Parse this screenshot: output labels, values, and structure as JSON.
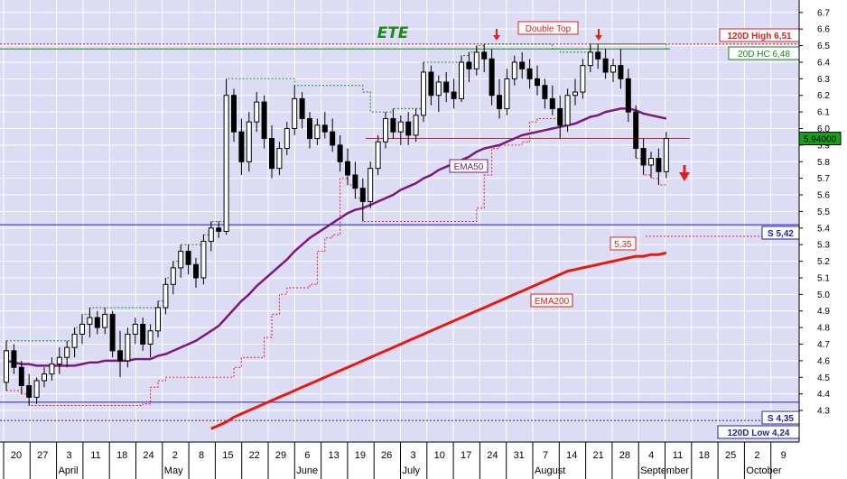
{
  "chart_data": {
    "type": "candlestick",
    "title": "ETE",
    "ylim": [
      4.2,
      6.75
    ],
    "y_ticks": [
      4.3,
      4.4,
      4.5,
      4.6,
      4.7,
      4.8,
      4.9,
      5.0,
      5.1,
      5.2,
      5.3,
      5.4,
      5.5,
      5.6,
      5.7,
      5.8,
      5.9,
      6.0,
      6.1,
      6.2,
      6.3,
      6.4,
      6.5,
      6.6,
      6.7
    ],
    "y_tick_labels": [
      "4.3",
      "4.4",
      "4.5",
      "4.6",
      "4.7",
      "4.8",
      "4.9",
      "5.0",
      "5.1",
      "5.2",
      "5.3",
      "5.4",
      "5.5",
      "5.6",
      "5.7",
      "5.8",
      "5.9",
      "6.0",
      "6.1",
      "6.2",
      "6.3",
      "6.4",
      "6.5",
      "6.6",
      "6.7"
    ],
    "x_tick_labels": [
      "20",
      "27",
      "3",
      "11",
      "18",
      "24",
      "2",
      "8",
      "15",
      "22",
      "29",
      "6",
      "13",
      "19",
      "26",
      "3",
      "10",
      "17",
      "24",
      "31",
      "7",
      "14",
      "21",
      "28",
      "4",
      "11",
      "18",
      "25",
      "2",
      "9"
    ],
    "months": [
      {
        "label": "April",
        "tick": 2
      },
      {
        "label": "May",
        "tick": 6
      },
      {
        "label": "June",
        "tick": 11
      },
      {
        "label": "July",
        "tick": 15
      },
      {
        "label": "August",
        "tick": 20
      },
      {
        "label": "September",
        "tick": 24
      },
      {
        "label": "October",
        "tick": 28
      }
    ],
    "candles": [
      [
        4.47,
        4.72,
        4.42,
        4.66
      ],
      [
        4.66,
        4.7,
        4.52,
        4.56
      ],
      [
        4.56,
        4.6,
        4.4,
        4.45
      ],
      [
        4.45,
        4.52,
        4.33,
        4.38
      ],
      [
        4.38,
        4.5,
        4.34,
        4.48
      ],
      [
        4.48,
        4.56,
        4.44,
        4.52
      ],
      [
        4.52,
        4.62,
        4.48,
        4.58
      ],
      [
        4.58,
        4.68,
        4.52,
        4.62
      ],
      [
        4.62,
        4.72,
        4.56,
        4.68
      ],
      [
        4.68,
        4.8,
        4.62,
        4.76
      ],
      [
        4.76,
        4.88,
        4.7,
        4.82
      ],
      [
        4.82,
        4.92,
        4.74,
        4.86
      ],
      [
        4.86,
        4.9,
        4.76,
        4.8
      ],
      [
        4.8,
        4.92,
        4.76,
        4.88
      ],
      [
        4.88,
        4.9,
        4.62,
        4.66
      ],
      [
        4.66,
        4.78,
        4.5,
        4.6
      ],
      [
        4.6,
        4.8,
        4.56,
        4.76
      ],
      [
        4.76,
        4.86,
        4.7,
        4.82
      ],
      [
        4.82,
        4.86,
        4.66,
        4.7
      ],
      [
        4.7,
        4.82,
        4.62,
        4.78
      ],
      [
        4.78,
        4.96,
        4.74,
        4.92
      ],
      [
        4.92,
        5.1,
        4.88,
        5.06
      ],
      [
        5.06,
        5.2,
        5.0,
        5.16
      ],
      [
        5.16,
        5.3,
        5.1,
        5.26
      ],
      [
        5.26,
        5.3,
        5.12,
        5.18
      ],
      [
        5.18,
        5.22,
        5.04,
        5.1
      ],
      [
        5.1,
        5.36,
        5.06,
        5.32
      ],
      [
        5.32,
        5.44,
        5.26,
        5.4
      ],
      [
        5.4,
        5.44,
        5.34,
        5.38
      ],
      [
        5.38,
        6.3,
        5.36,
        6.2
      ],
      [
        6.2,
        6.24,
        5.92,
        5.98
      ],
      [
        5.98,
        6.06,
        5.72,
        5.8
      ],
      [
        5.8,
        6.1,
        5.74,
        6.04
      ],
      [
        6.04,
        6.22,
        5.98,
        6.16
      ],
      [
        6.16,
        6.2,
        5.88,
        5.94
      ],
      [
        5.94,
        6.02,
        5.7,
        5.76
      ],
      [
        5.76,
        5.92,
        5.72,
        5.88
      ],
      [
        5.88,
        6.04,
        5.84,
        6.0
      ],
      [
        6.0,
        6.26,
        5.96,
        6.18
      ],
      [
        6.18,
        6.22,
        6.0,
        6.06
      ],
      [
        6.06,
        6.1,
        5.88,
        5.94
      ],
      [
        5.94,
        6.06,
        5.9,
        6.02
      ],
      [
        6.02,
        6.1,
        5.94,
        5.98
      ],
      [
        5.98,
        6.06,
        5.86,
        5.9
      ],
      [
        5.9,
        5.96,
        5.74,
        5.8
      ],
      [
        5.8,
        5.88,
        5.66,
        5.72
      ],
      [
        5.72,
        5.8,
        5.58,
        5.64
      ],
      [
        5.64,
        5.7,
        5.44,
        5.56
      ],
      [
        5.56,
        5.8,
        5.52,
        5.76
      ],
      [
        5.76,
        5.96,
        5.72,
        5.92
      ],
      [
        5.92,
        6.1,
        5.88,
        6.06
      ],
      [
        6.06,
        6.12,
        5.94,
        5.98
      ],
      [
        5.98,
        6.08,
        5.9,
        6.04
      ],
      [
        6.04,
        6.1,
        5.9,
        5.96
      ],
      [
        5.96,
        6.12,
        5.92,
        6.08
      ],
      [
        6.08,
        6.4,
        6.04,
        6.34
      ],
      [
        6.34,
        6.38,
        6.14,
        6.2
      ],
      [
        6.2,
        6.32,
        6.1,
        6.28
      ],
      [
        6.28,
        6.34,
        6.16,
        6.22
      ],
      [
        6.22,
        6.3,
        6.12,
        6.18
      ],
      [
        6.18,
        6.44,
        6.16,
        6.4
      ],
      [
        6.4,
        6.46,
        6.28,
        6.36
      ],
      [
        6.36,
        6.5,
        6.32,
        6.46
      ],
      [
        6.46,
        6.51,
        6.34,
        6.42
      ],
      [
        6.42,
        6.48,
        6.14,
        6.2
      ],
      [
        6.2,
        6.3,
        6.06,
        6.12
      ],
      [
        6.12,
        6.36,
        6.08,
        6.3
      ],
      [
        6.3,
        6.44,
        6.26,
        6.4
      ],
      [
        6.4,
        6.46,
        6.3,
        6.36
      ],
      [
        6.36,
        6.42,
        6.24,
        6.3
      ],
      [
        6.3,
        6.38,
        6.2,
        6.26
      ],
      [
        6.26,
        6.3,
        6.12,
        6.18
      ],
      [
        6.18,
        6.26,
        6.08,
        6.12
      ],
      [
        6.12,
        6.2,
        5.94,
        6.02
      ],
      [
        6.02,
        6.24,
        5.98,
        6.2
      ],
      [
        6.2,
        6.3,
        6.14,
        6.22
      ],
      [
        6.22,
        6.42,
        6.18,
        6.38
      ],
      [
        6.38,
        6.51,
        6.34,
        6.46
      ],
      [
        6.46,
        6.51,
        6.36,
        6.42
      ],
      [
        6.42,
        6.48,
        6.3,
        6.34
      ],
      [
        6.34,
        6.42,
        6.28,
        6.38
      ],
      [
        6.38,
        6.48,
        6.24,
        6.3
      ],
      [
        6.3,
        6.36,
        6.04,
        6.1
      ],
      [
        6.1,
        6.14,
        5.82,
        5.88
      ],
      [
        5.88,
        5.94,
        5.72,
        5.78
      ],
      [
        5.78,
        5.86,
        5.7,
        5.82
      ],
      [
        5.82,
        5.88,
        5.66,
        5.74
      ],
      [
        5.74,
        5.98,
        5.7,
        5.94
      ]
    ],
    "ema50": [
      4.6,
      4.59,
      4.58,
      4.58,
      4.57,
      4.57,
      4.57,
      4.57,
      4.57,
      4.57,
      4.58,
      4.59,
      4.59,
      4.6,
      4.6,
      4.6,
      4.6,
      4.61,
      4.61,
      4.61,
      4.63,
      4.64,
      4.66,
      4.68,
      4.7,
      4.72,
      4.75,
      4.78,
      4.81,
      4.86,
      4.91,
      4.96,
      5.0,
      5.05,
      5.09,
      5.13,
      5.17,
      5.21,
      5.26,
      5.3,
      5.34,
      5.37,
      5.4,
      5.43,
      5.46,
      5.49,
      5.51,
      5.52,
      5.54,
      5.56,
      5.58,
      5.6,
      5.63,
      5.65,
      5.67,
      5.7,
      5.72,
      5.75,
      5.77,
      5.79,
      5.81,
      5.83,
      5.86,
      5.88,
      5.89,
      5.9,
      5.92,
      5.94,
      5.96,
      5.97,
      5.98,
      5.99,
      6.0,
      6.01,
      6.02,
      6.03,
      6.05,
      6.07,
      6.08,
      6.1,
      6.11,
      6.12,
      6.12,
      6.11,
      6.09,
      6.08,
      6.07,
      6.06
    ],
    "ema200": [
      null,
      null,
      null,
      null,
      null,
      null,
      null,
      null,
      null,
      null,
      null,
      null,
      null,
      null,
      null,
      null,
      null,
      null,
      null,
      null,
      null,
      null,
      null,
      null,
      null,
      null,
      null,
      4.19,
      4.21,
      4.23,
      4.26,
      4.28,
      4.3,
      4.32,
      4.34,
      4.36,
      4.38,
      4.4,
      4.42,
      4.44,
      4.46,
      4.48,
      4.5,
      4.52,
      4.54,
      4.56,
      4.58,
      4.6,
      4.62,
      4.64,
      4.66,
      4.68,
      4.7,
      4.72,
      4.74,
      4.76,
      4.78,
      4.8,
      4.82,
      4.84,
      4.86,
      4.88,
      4.9,
      4.92,
      4.94,
      4.96,
      4.98,
      5.0,
      5.02,
      5.04,
      5.06,
      5.08,
      5.1,
      5.12,
      5.14,
      5.15,
      5.16,
      5.17,
      5.18,
      5.19,
      5.2,
      5.21,
      5.22,
      5.23,
      5.23,
      5.24,
      5.24,
      5.25
    ],
    "resistance_120d_high": {
      "value": 6.51,
      "label": "120D High 6,51"
    },
    "high_close_20d": {
      "value": 6.48,
      "label": "20D HC 6,48"
    },
    "support_upper": {
      "value": 5.42,
      "label": "S 5,42"
    },
    "support_lower": {
      "value": 4.35,
      "label": "S 4,35"
    },
    "low_120d": {
      "value": 4.24,
      "label": "120D Low 4,24"
    },
    "neckline": {
      "value": 5.94
    },
    "stop_level": {
      "value": 5.35,
      "label": "5,35"
    },
    "last_price": {
      "value": 5.94,
      "label": "5.94000"
    },
    "series_labels": {
      "ema50": "EMA50",
      "ema200": "EMA200"
    },
    "annotations": {
      "double_top": "Double Top"
    },
    "colors": {
      "plot_bg": "#dcdcf4",
      "candle": "#000000",
      "ema50": "#7a1a7a",
      "ema200": "#e81a10",
      "support": "#2020b0",
      "resistance": "#e02020",
      "trail_green": "#1a8a1a",
      "trail_red": "#e02020",
      "title": "#1a8a1a",
      "last_price_bg": "#18a018"
    }
  }
}
